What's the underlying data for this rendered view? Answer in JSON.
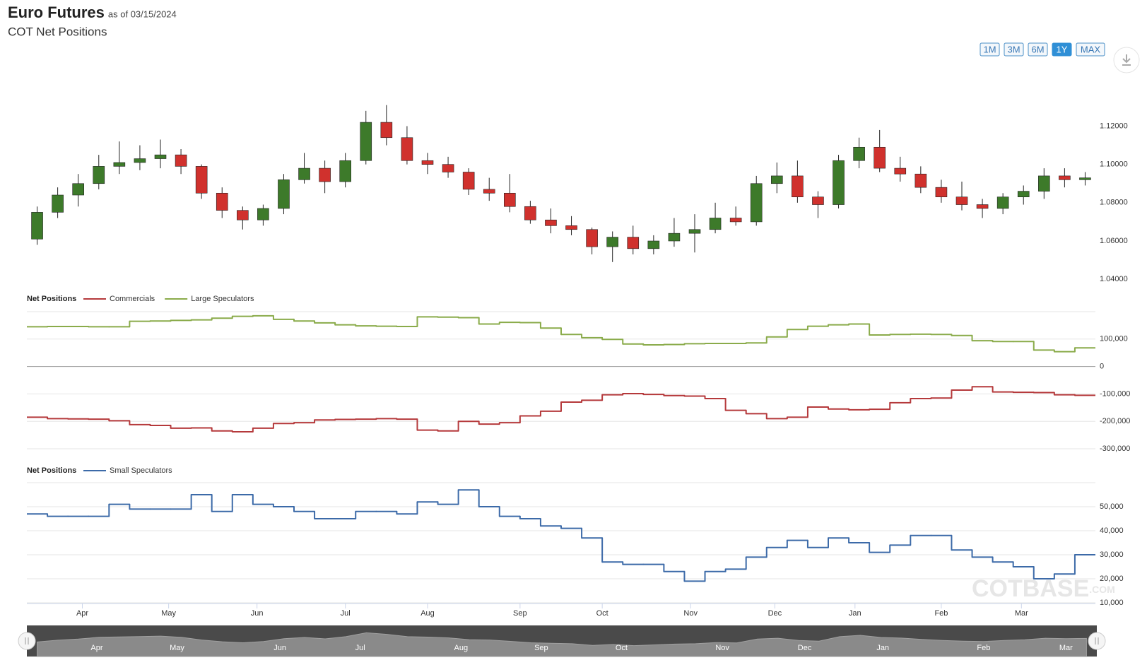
{
  "header": {
    "title": "Euro Futures",
    "as_of": "as of 03/15/2024",
    "subtitle": "COT Net Positions"
  },
  "range_buttons": {
    "labels": [
      "1M",
      "3M",
      "6M",
      "1Y",
      "MAX"
    ],
    "active": "1Y"
  },
  "watermark": [
    "COT",
    "BASE",
    ".COM"
  ],
  "chart_data": [
    {
      "type": "candlestick",
      "xlim": [
        0,
        52
      ],
      "ylim": [
        1.036,
        1.132
      ],
      "yticks": [
        {
          "value": 1.04,
          "label": "1.04000"
        },
        {
          "value": 1.06,
          "label": "1.06000"
        },
        {
          "value": 1.08,
          "label": "1.08000"
        },
        {
          "value": 1.1,
          "label": "1.10000"
        },
        {
          "value": 1.12,
          "label": "1.12000"
        }
      ],
      "up_color": "#3d7a2a",
      "down_color": "#d0312d",
      "open": [
        1.061,
        1.075,
        1.084,
        1.09,
        1.099,
        1.101,
        1.103,
        1.105,
        1.099,
        1.085,
        1.076,
        1.071,
        1.077,
        1.092,
        1.098,
        1.091,
        1.102,
        1.122,
        1.114,
        1.102,
        1.1,
        1.096,
        1.087,
        1.085,
        1.078,
        1.071,
        1.068,
        1.066,
        1.057,
        1.062,
        1.056,
        1.06,
        1.064,
        1.066,
        1.072,
        1.07,
        1.09,
        1.094,
        1.083,
        1.079,
        1.102,
        1.109,
        1.098,
        1.095,
        1.088,
        1.083,
        1.079,
        1.077,
        1.083,
        1.086,
        1.094,
        1.092
      ],
      "high": [
        1.078,
        1.088,
        1.095,
        1.105,
        1.112,
        1.11,
        1.113,
        1.108,
        1.1,
        1.088,
        1.078,
        1.079,
        1.095,
        1.106,
        1.102,
        1.106,
        1.128,
        1.131,
        1.12,
        1.106,
        1.104,
        1.098,
        1.093,
        1.095,
        1.081,
        1.077,
        1.073,
        1.067,
        1.065,
        1.068,
        1.063,
        1.072,
        1.074,
        1.08,
        1.078,
        1.094,
        1.101,
        1.102,
        1.086,
        1.105,
        1.114,
        1.118,
        1.104,
        1.099,
        1.092,
        1.091,
        1.082,
        1.085,
        1.089,
        1.098,
        1.098,
        1.096
      ],
      "low": [
        1.058,
        1.072,
        1.078,
        1.087,
        1.095,
        1.097,
        1.098,
        1.095,
        1.082,
        1.072,
        1.066,
        1.068,
        1.074,
        1.09,
        1.085,
        1.088,
        1.1,
        1.11,
        1.1,
        1.095,
        1.093,
        1.084,
        1.081,
        1.075,
        1.069,
        1.064,
        1.063,
        1.053,
        1.049,
        1.053,
        1.053,
        1.057,
        1.054,
        1.064,
        1.068,
        1.068,
        1.085,
        1.08,
        1.072,
        1.077,
        1.098,
        1.096,
        1.091,
        1.085,
        1.08,
        1.076,
        1.072,
        1.074,
        1.079,
        1.082,
        1.088,
        1.089
      ],
      "close": [
        1.075,
        1.084,
        1.09,
        1.099,
        1.101,
        1.103,
        1.105,
        1.099,
        1.085,
        1.076,
        1.071,
        1.077,
        1.092,
        1.098,
        1.091,
        1.102,
        1.122,
        1.114,
        1.102,
        1.1,
        1.096,
        1.087,
        1.085,
        1.078,
        1.071,
        1.068,
        1.066,
        1.057,
        1.062,
        1.056,
        1.06,
        1.064,
        1.066,
        1.072,
        1.07,
        1.09,
        1.094,
        1.083,
        1.079,
        1.102,
        1.109,
        1.098,
        1.095,
        1.088,
        1.083,
        1.079,
        1.077,
        1.083,
        1.086,
        1.094,
        1.092,
        1.093
      ]
    },
    {
      "type": "step",
      "legend_title": "Net Positions",
      "xlim": [
        0,
        52
      ],
      "ylim": [
        -300000,
        200000
      ],
      "yticks": [
        {
          "value": -300000,
          "label": "-300,000"
        },
        {
          "value": -200000,
          "label": "-200,000"
        },
        {
          "value": -100000,
          "label": "-100,000"
        },
        0,
        {
          "value": 100000,
          "label": "100,000"
        }
      ],
      "grid": true,
      "series": [
        {
          "name": "Commercials",
          "color": "#b5393b",
          "values": [
            -185000,
            -190000,
            -191000,
            -192000,
            -198000,
            -212000,
            -215000,
            -225000,
            -224000,
            -235000,
            -238000,
            -225000,
            -208000,
            -205000,
            -195000,
            -193000,
            -192000,
            -190000,
            -192000,
            -232000,
            -235000,
            -200000,
            -210000,
            -205000,
            -180000,
            -163000,
            -130000,
            -123000,
            -103000,
            -99000,
            -102000,
            -106000,
            -108000,
            -117000,
            -160000,
            -172000,
            -190000,
            -185000,
            -148000,
            -155000,
            -158000,
            -156000,
            -132000,
            -117000,
            -115000,
            -86000,
            -74000,
            -93000,
            -94000,
            -95000,
            -103000,
            -105000
          ]
        },
        {
          "name": "Large Speculators",
          "color": "#8aab4a",
          "values": [
            145000,
            146000,
            146000,
            145000,
            145000,
            165000,
            166000,
            168000,
            170000,
            176000,
            183000,
            185000,
            172000,
            166000,
            159000,
            152000,
            148000,
            147000,
            146000,
            181000,
            180000,
            178000,
            155000,
            161000,
            160000,
            140000,
            117000,
            105000,
            99000,
            82000,
            79000,
            80000,
            83000,
            84000,
            84000,
            86000,
            108000,
            135000,
            147000,
            152000,
            155000,
            115000,
            117000,
            118000,
            117000,
            113000,
            94000,
            91000,
            91000,
            60000,
            54000,
            68000
          ]
        }
      ]
    },
    {
      "type": "step",
      "legend_title": "Net Positions",
      "xlim": [
        0,
        52
      ],
      "ylim": [
        10000,
        60000
      ],
      "yticks": [
        {
          "value": 10000,
          "label": "10,000"
        },
        {
          "value": 20000,
          "label": "20,000"
        },
        {
          "value": 30000,
          "label": "30,000"
        },
        {
          "value": 40000,
          "label": "40,000"
        },
        {
          "value": 50000,
          "label": "50,000"
        }
      ],
      "grid": true,
      "xticks": [
        {
          "value": 2.7,
          "label": "Apr"
        },
        {
          "value": 6.9,
          "label": "May"
        },
        {
          "value": 11.2,
          "label": "Jun"
        },
        {
          "value": 15.5,
          "label": "Jul"
        },
        {
          "value": 19.5,
          "label": "Aug"
        },
        {
          "value": 24.0,
          "label": "Sep"
        },
        {
          "value": 28.0,
          "label": "Oct"
        },
        {
          "value": 32.3,
          "label": "Nov"
        },
        {
          "value": 36.4,
          "label": "Dec"
        },
        {
          "value": 40.3,
          "label": "Jan"
        },
        {
          "value": 44.5,
          "label": "Feb"
        },
        {
          "value": 48.4,
          "label": "Mar"
        }
      ],
      "series": [
        {
          "name": "Small Speculators",
          "color": "#3c6aa8",
          "values": [
            47000,
            46000,
            46000,
            46000,
            51000,
            49000,
            49000,
            49000,
            55000,
            48000,
            55000,
            51000,
            50000,
            48000,
            45000,
            45000,
            48000,
            48000,
            47000,
            52000,
            51000,
            57000,
            50000,
            46000,
            45000,
            42000,
            41000,
            37000,
            27000,
            26000,
            26000,
            23000,
            19000,
            23000,
            24000,
            29000,
            33000,
            36000,
            33000,
            37000,
            35000,
            31000,
            34000,
            38000,
            38000,
            32000,
            29000,
            27000,
            25000,
            20000,
            22000,
            30000
          ]
        }
      ]
    }
  ],
  "navigator": {
    "xlim": [
      0,
      52
    ],
    "ylim": [
      1.0,
      1.16
    ],
    "xticks": [
      {
        "value": 3.4,
        "label": "Apr"
      },
      {
        "value": 7.3,
        "label": "May"
      },
      {
        "value": 12.3,
        "label": "Jun"
      },
      {
        "value": 16.2,
        "label": "Jul"
      },
      {
        "value": 21.1,
        "label": "Aug"
      },
      {
        "value": 25.0,
        "label": "Sep"
      },
      {
        "value": 28.9,
        "label": "Oct"
      },
      {
        "value": 33.8,
        "label": "Nov"
      },
      {
        "value": 37.8,
        "label": "Dec"
      },
      {
        "value": 41.6,
        "label": "Jan"
      },
      {
        "value": 46.5,
        "label": "Feb"
      },
      {
        "value": 50.5,
        "label": "Mar"
      }
    ]
  }
}
